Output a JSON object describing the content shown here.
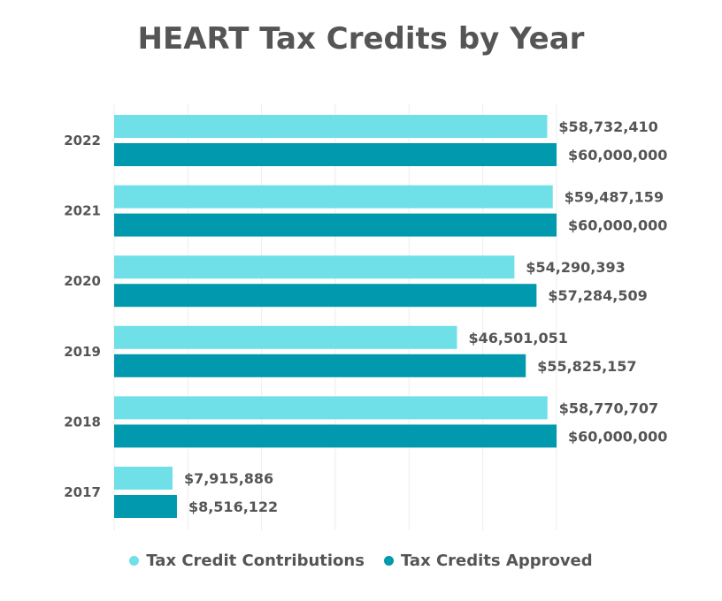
{
  "colors": {
    "contributions": "#6fdfe8",
    "approved": "#0099ad",
    "text": "#555555",
    "grid": "#eeeeee"
  },
  "chart_data": {
    "type": "bar",
    "orientation": "horizontal",
    "title": "HEART Tax Credits by Year",
    "categories": [
      "2022",
      "2021",
      "2020",
      "2019",
      "2018",
      "2017"
    ],
    "series": [
      {
        "name": "Tax Credit Contributions",
        "values": [
          58732410,
          59487159,
          54290393,
          46501051,
          58770707,
          7915886
        ],
        "labels": [
          "$58,732,410",
          "$59,487,159",
          "$54,290,393",
          "$46,501,051",
          "$58,770,707",
          "$7,915,886"
        ]
      },
      {
        "name": "Tax Credits Approved",
        "values": [
          60000000,
          60000000,
          57284509,
          55825157,
          60000000,
          8516122
        ],
        "labels": [
          "$60,000,000",
          "$60,000,000",
          "$57,284,509",
          "$55,825,157",
          "$60,000,000",
          "$8,516,122"
        ]
      }
    ],
    "xlim": [
      0,
      60000000
    ],
    "grid": true,
    "legend_position": "bottom"
  }
}
